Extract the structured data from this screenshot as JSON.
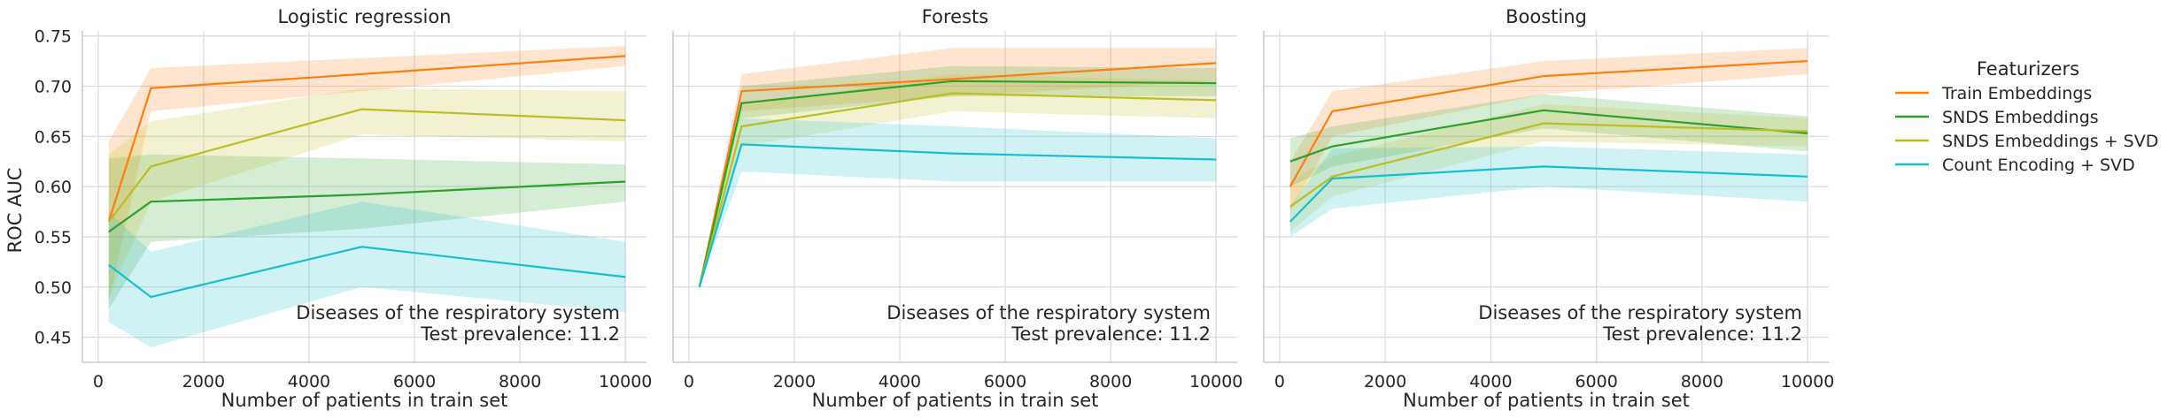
{
  "figure": {
    "ylabel": "ROC AUC",
    "xlabel": "Number of patients in train set",
    "annotation_line1": "Diseases of the respiratory system",
    "annotation_line2": "Test prevalence: 11.2",
    "legend_title": "Featurizers",
    "legend_placement": "right, outside plots",
    "grid": true
  },
  "chart_data": [
    {
      "type": "line",
      "title": "Logistic regression",
      "xlabel": "Number of patients in train set",
      "ylabel": "ROC AUC",
      "xlim": [
        -300,
        10400
      ],
      "ylim": [
        0.425,
        0.755
      ],
      "xticks": [
        "0",
        "2000",
        "4000",
        "6000",
        "8000",
        "10000"
      ],
      "yticks": [
        "0.45",
        "0.50",
        "0.55",
        "0.60",
        "0.65",
        "0.70",
        "0.75"
      ],
      "x": [
        200,
        1000,
        5000,
        10000
      ],
      "series": [
        {
          "name": "Train Embeddings",
          "color": "#ff7f0e",
          "values": [
            0.565,
            0.698,
            0.712,
            0.73
          ],
          "lower": [
            0.485,
            0.675,
            0.695,
            0.72
          ],
          "upper": [
            0.645,
            0.718,
            0.728,
            0.74
          ]
        },
        {
          "name": "SNDS Embeddings",
          "color": "#2ca02c",
          "values": [
            0.555,
            0.585,
            0.592,
            0.605
          ],
          "lower": [
            0.478,
            0.545,
            0.558,
            0.585
          ],
          "upper": [
            0.628,
            0.632,
            0.628,
            0.622
          ]
        },
        {
          "name": "SNDS Embeddings + SVD",
          "color": "#bcbd22",
          "values": [
            0.565,
            0.62,
            0.677,
            0.666
          ],
          "lower": [
            0.49,
            0.585,
            0.652,
            0.645
          ],
          "upper": [
            0.632,
            0.665,
            0.698,
            0.695
          ]
        },
        {
          "name": "Count Encoding + SVD",
          "color": "#17becf",
          "values": [
            0.522,
            0.49,
            0.54,
            0.51
          ],
          "lower": [
            0.465,
            0.44,
            0.5,
            0.475
          ],
          "upper": [
            0.575,
            0.535,
            0.585,
            0.545
          ]
        }
      ]
    },
    {
      "type": "line",
      "title": "Forests",
      "xlabel": "Number of patients in train set",
      "xlim": [
        -300,
        10400
      ],
      "ylim": [
        0.425,
        0.755
      ],
      "xticks": [
        "0",
        "2000",
        "4000",
        "6000",
        "8000",
        "10000"
      ],
      "x": [
        200,
        1000,
        5000,
        10000
      ],
      "series": [
        {
          "name": "Train Embeddings",
          "color": "#ff7f0e",
          "values": [
            0.5,
            0.695,
            0.707,
            0.723
          ],
          "lower": [
            0.5,
            0.675,
            0.69,
            0.705
          ],
          "upper": [
            0.5,
            0.712,
            0.738,
            0.738
          ]
        },
        {
          "name": "SNDS Embeddings",
          "color": "#2ca02c",
          "values": [
            0.5,
            0.683,
            0.705,
            0.703
          ],
          "lower": [
            0.5,
            0.668,
            0.69,
            0.69
          ],
          "upper": [
            0.5,
            0.7,
            0.72,
            0.718
          ]
        },
        {
          "name": "SNDS Embeddings + SVD",
          "color": "#bcbd22",
          "values": [
            0.5,
            0.66,
            0.693,
            0.686
          ],
          "lower": [
            0.5,
            0.64,
            0.675,
            0.668
          ],
          "upper": [
            0.5,
            0.68,
            0.712,
            0.705
          ]
        },
        {
          "name": "Count Encoding + SVD",
          "color": "#17becf",
          "values": [
            0.5,
            0.642,
            0.633,
            0.627
          ],
          "lower": [
            0.5,
            0.615,
            0.605,
            0.605
          ],
          "upper": [
            0.5,
            0.668,
            0.66,
            0.648
          ]
        }
      ]
    },
    {
      "type": "line",
      "title": "Boosting",
      "xlabel": "Number of patients in train set",
      "xlim": [
        -300,
        10400
      ],
      "ylim": [
        0.425,
        0.755
      ],
      "xticks": [
        "0",
        "2000",
        "4000",
        "6000",
        "8000",
        "10000"
      ],
      "x": [
        200,
        1000,
        5000,
        10000
      ],
      "series": [
        {
          "name": "Train Embeddings",
          "color": "#ff7f0e",
          "values": [
            0.6,
            0.675,
            0.71,
            0.725
          ],
          "lower": [
            0.575,
            0.65,
            0.692,
            0.712
          ],
          "upper": [
            0.625,
            0.695,
            0.725,
            0.738
          ]
        },
        {
          "name": "SNDS Embeddings",
          "color": "#2ca02c",
          "values": [
            0.625,
            0.64,
            0.676,
            0.653
          ],
          "lower": [
            0.6,
            0.62,
            0.658,
            0.635
          ],
          "upper": [
            0.648,
            0.66,
            0.692,
            0.67
          ]
        },
        {
          "name": "SNDS Embeddings + SVD",
          "color": "#bcbd22",
          "values": [
            0.58,
            0.61,
            0.663,
            0.655
          ],
          "lower": [
            0.555,
            0.59,
            0.645,
            0.64
          ],
          "upper": [
            0.605,
            0.63,
            0.682,
            0.668
          ]
        },
        {
          "name": "Count Encoding + SVD",
          "color": "#17becf",
          "values": [
            0.565,
            0.608,
            0.62,
            0.61
          ],
          "lower": [
            0.55,
            0.578,
            0.6,
            0.585
          ],
          "upper": [
            0.58,
            0.638,
            0.64,
            0.632
          ]
        }
      ]
    }
  ]
}
